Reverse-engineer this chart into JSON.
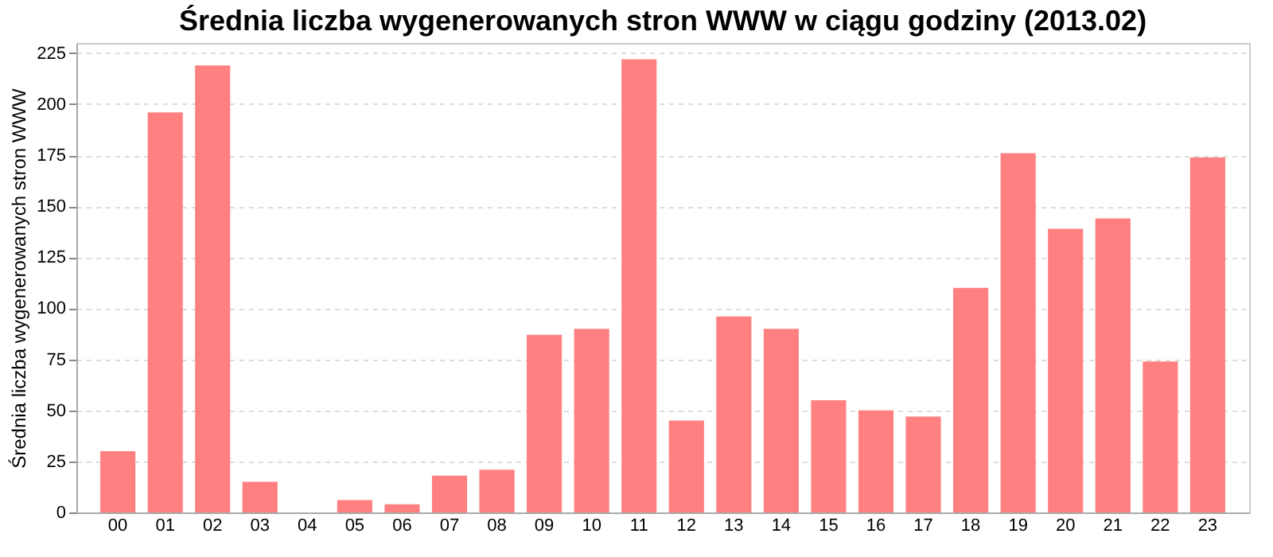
{
  "chart_data": {
    "type": "bar",
    "title": "Średnia liczba wygenerowanych stron WWW w ciągu godziny (2013.02)",
    "ylabel": "Średnia liczba wygenerowanych stron WWW",
    "categories": [
      "00",
      "01",
      "02",
      "03",
      "04",
      "05",
      "06",
      "07",
      "08",
      "09",
      "10",
      "11",
      "12",
      "13",
      "14",
      "15",
      "16",
      "17",
      "18",
      "19",
      "20",
      "21",
      "22",
      "23"
    ],
    "values": [
      30,
      196,
      219,
      15,
      0,
      6,
      4,
      18,
      21,
      87,
      90,
      222,
      45,
      96,
      90,
      55,
      50,
      47,
      110,
      176,
      139,
      144,
      74,
      174
    ],
    "color": "#ff8080",
    "ylim": [
      0,
      230
    ],
    "yticks": [
      0,
      25,
      50,
      75,
      100,
      125,
      150,
      175,
      200,
      225
    ],
    "grid": "y"
  }
}
